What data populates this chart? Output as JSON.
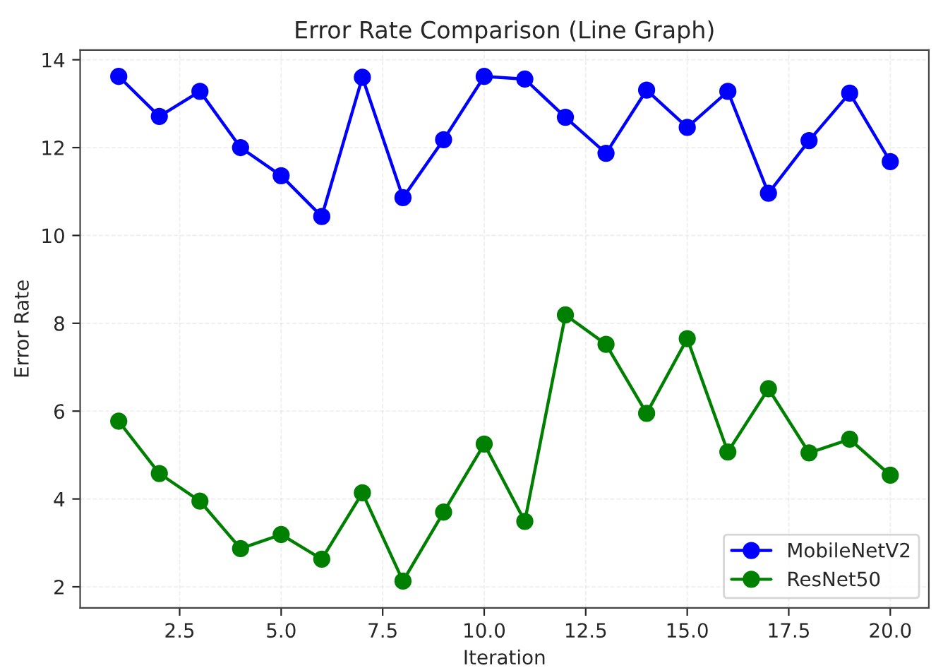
{
  "chart_data": {
    "type": "line",
    "title": "Error Rate Comparison (Line Graph)",
    "xlabel": "Iteration",
    "ylabel": "Error Rate",
    "x": [
      1,
      2,
      3,
      4,
      5,
      6,
      7,
      8,
      9,
      10,
      11,
      12,
      13,
      14,
      15,
      16,
      17,
      18,
      19,
      20
    ],
    "series": [
      {
        "name": "MobileNetV2",
        "color": "#0000ff",
        "values": [
          13.62,
          12.71,
          13.28,
          12.0,
          11.36,
          10.43,
          13.6,
          10.86,
          12.18,
          13.62,
          13.56,
          12.69,
          11.87,
          13.31,
          12.46,
          13.28,
          10.96,
          12.16,
          13.24,
          11.68
        ]
      },
      {
        "name": "ResNet50",
        "color": "#008000",
        "values": [
          5.77,
          4.58,
          3.95,
          2.87,
          3.19,
          2.63,
          4.14,
          2.13,
          3.7,
          5.25,
          3.49,
          8.19,
          7.52,
          5.95,
          7.65,
          5.07,
          6.51,
          5.05,
          5.36,
          4.54
        ]
      }
    ],
    "xlim": [
      0.05,
      20.95
    ],
    "ylim": [
      1.52,
      14.22
    ],
    "xticks": [
      {
        "value": 2.5,
        "label": "2.5"
      },
      {
        "value": 5,
        "label": "5.0"
      },
      {
        "value": 7.5,
        "label": "7.5"
      },
      {
        "value": 10,
        "label": "10.0"
      },
      {
        "value": 12.5,
        "label": "12.5"
      },
      {
        "value": 15,
        "label": "15.0"
      },
      {
        "value": 17.5,
        "label": "17.5"
      },
      {
        "value": 20,
        "label": "20.0"
      }
    ],
    "yticks": [
      2,
      4,
      6,
      8,
      10,
      12,
      14
    ],
    "grid": true,
    "legend": "lower right",
    "marker": "circle",
    "line_style": "solid"
  }
}
